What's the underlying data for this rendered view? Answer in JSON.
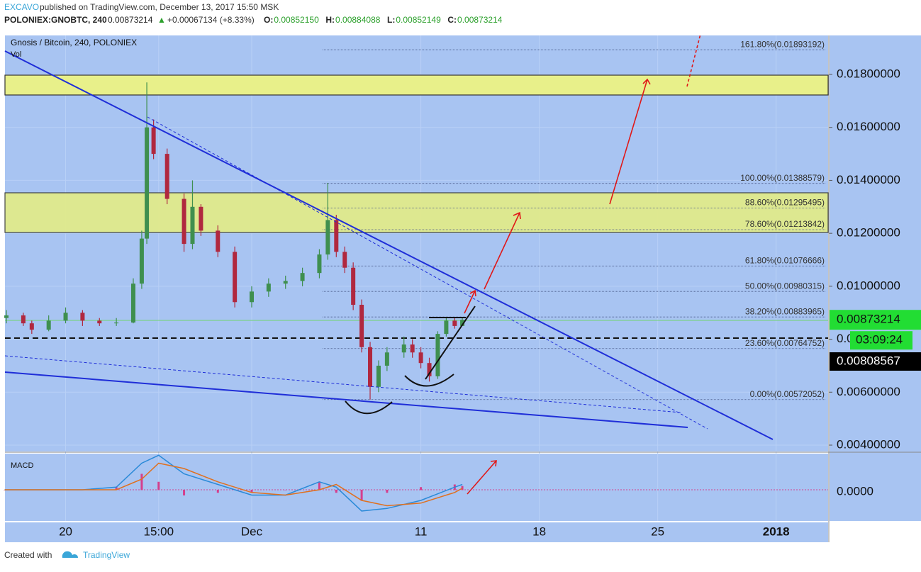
{
  "header": {
    "author": "EXCAVO",
    "published": "published on TradingView.com, December 13, 2017 15:50 MSK",
    "symbol": "POLONIEX:GNOBTC, 240",
    "last": "0.00873214",
    "arrow": "▲",
    "change": "+0.00067134 (+8.33%)",
    "ohlc": [
      {
        "key": "O:",
        "value": "0.00852150"
      },
      {
        "key": "H:",
        "value": "0.00884088"
      },
      {
        "key": "L:",
        "value": "0.00852149"
      },
      {
        "key": "C:",
        "value": "0.00873214"
      }
    ]
  },
  "chart": {
    "title": "Gnosis / Bitcoin, 240, POLONIEX",
    "vol_label": "Vol",
    "macd_label": "MACD",
    "macd_tick": {
      "value": 0,
      "label": "0.0000"
    },
    "yticks": [
      {
        "value": 0.018,
        "label": "0.01800000"
      },
      {
        "value": 0.016,
        "label": "0.01600000"
      },
      {
        "value": 0.014,
        "label": "0.01400000"
      },
      {
        "value": 0.012,
        "label": "0.01200000"
      },
      {
        "value": 0.01,
        "label": "0.01000000"
      },
      {
        "value": 0.008,
        "label": "0.0"
      },
      {
        "value": 0.006,
        "label": "0.00600000"
      },
      {
        "value": 0.004,
        "label": "0.00400000"
      }
    ],
    "xticks": [
      {
        "value": -11,
        "label": "20"
      },
      {
        "value": -5.5,
        "label": "15:00"
      },
      {
        "value": 0,
        "label": "Dec"
      },
      {
        "value": 10,
        "label": "11"
      },
      {
        "value": 17,
        "label": "18"
      },
      {
        "value": 24,
        "label": "25"
      },
      {
        "value": 31,
        "label": "2018"
      }
    ],
    "price_badge": {
      "value": 0.00873214,
      "label": "0.00873214"
    },
    "timer": "03:09:24",
    "cursor_badge": "0.00808567",
    "fib": [
      {
        "value": 0.01893192,
        "label": "161.80%(0.01893192)"
      },
      {
        "value": 0.01388579,
        "label": "100.00%(0.01388579)"
      },
      {
        "value": 0.01295495,
        "label": "88.60%(0.01295495)"
      },
      {
        "value": 0.01213842,
        "label": "78.60%(0.01213842)"
      },
      {
        "value": 0.01076666,
        "label": "61.80%(0.01076666)"
      },
      {
        "value": 0.00980315,
        "label": "50.00%(0.00980315)"
      },
      {
        "value": 0.00883965,
        "label": "38.20%(0.00883965)"
      },
      {
        "value": 0.00764752,
        "label": "23.60%(0.00764752)"
      },
      {
        "value": 0.00572052,
        "label": "0.00%(0.00572052)"
      }
    ],
    "candles": {
      "x": [
        -14.5,
        -13.5,
        -13,
        -12,
        -11,
        -10,
        -9,
        -8,
        -7,
        -6.5,
        -6.2,
        -5.8,
        -5,
        -4,
        -3.5,
        -3,
        -2,
        -1,
        0,
        1,
        2,
        3,
        4,
        4.5,
        5,
        5.5,
        6,
        6.5,
        7,
        7.5,
        8,
        9,
        9.5,
        10,
        10.5,
        11,
        11.5,
        12,
        12.45
      ],
      "open": [
        0.0088,
        0.0089,
        0.0086,
        0.00836,
        0.0087,
        0.009,
        0.0087,
        0.0086,
        0.00863,
        0.0101,
        0.0118,
        0.016,
        0.015,
        0.0133,
        0.0116,
        0.013,
        0.0121,
        0.0113,
        0.0094,
        0.0098,
        0.0101,
        0.0102,
        0.0105,
        0.0112,
        0.0125,
        0.0113,
        0.0107,
        0.0093,
        0.0077,
        0.0062,
        0.007,
        0.0075,
        0.0078,
        0.0075,
        0.0071,
        0.0066,
        0.0082,
        0.0087,
        0.0085
      ],
      "high": [
        0.0091,
        0.009,
        0.0087,
        0.0089,
        0.0092,
        0.0091,
        0.0088,
        0.0088,
        0.0103,
        0.0121,
        0.0177,
        0.0163,
        0.0152,
        0.0135,
        0.014,
        0.0131,
        0.0123,
        0.0115,
        0.01,
        0.0103,
        0.0104,
        0.0107,
        0.0114,
        0.0139,
        0.0127,
        0.0115,
        0.0109,
        0.0095,
        0.0079,
        0.0072,
        0.0077,
        0.0081,
        0.008,
        0.0077,
        0.0073,
        0.0083,
        0.00884088,
        0.0088,
        0.0088
      ],
      "low": [
        0.0086,
        0.0085,
        0.0082,
        0.0083,
        0.0086,
        0.0085,
        0.0085,
        0.0085,
        0.0086,
        0.0099,
        0.0116,
        0.0148,
        0.0131,
        0.0113,
        0.0114,
        0.0119,
        0.0111,
        0.0092,
        0.0092,
        0.0096,
        0.0099,
        0.01,
        0.0103,
        0.011,
        0.0111,
        0.0105,
        0.0091,
        0.0075,
        0.00572052,
        0.006,
        0.0068,
        0.0073,
        0.0073,
        0.0069,
        0.0064,
        0.0065,
        0.0081,
        0.0084,
        0.00852149
      ],
      "close": [
        0.0089,
        0.0086,
        0.00836,
        0.0087,
        0.009,
        0.0087,
        0.0086,
        0.00863,
        0.0101,
        0.0118,
        0.016,
        0.015,
        0.0133,
        0.0116,
        0.013,
        0.0121,
        0.0113,
        0.0094,
        0.0098,
        0.0101,
        0.0102,
        0.0105,
        0.0112,
        0.0125,
        0.0113,
        0.0107,
        0.0093,
        0.0077,
        0.0062,
        0.007,
        0.0075,
        0.0078,
        0.0075,
        0.0071,
        0.0066,
        0.0082,
        0.0087,
        0.0085,
        0.00873214
      ]
    },
    "macd": {
      "x": [
        -14.6,
        -10,
        -8,
        -6.5,
        -5.5,
        -4,
        -2,
        0,
        2,
        4,
        5,
        6.5,
        8,
        10,
        12,
        12.45
      ],
      "macd": [
        0,
        0,
        5e-05,
        0.0005,
        0.00065,
        0.0003,
        0.0001,
        -0.0001,
        -0.0001,
        0.00015,
        5e-05,
        -0.0004,
        -0.00035,
        -0.0002,
        5e-05,
        0.0001
      ],
      "signal": [
        0,
        0,
        0,
        0.0002,
        0.0005,
        0.0004,
        0.00015,
        -5e-05,
        -0.0001,
        0,
        0.0001,
        -0.0002,
        -0.0003,
        -0.00025,
        -5e-05,
        3e-05
      ]
    }
  },
  "footer": {
    "created": "Created with",
    "brand": "TradingView"
  }
}
